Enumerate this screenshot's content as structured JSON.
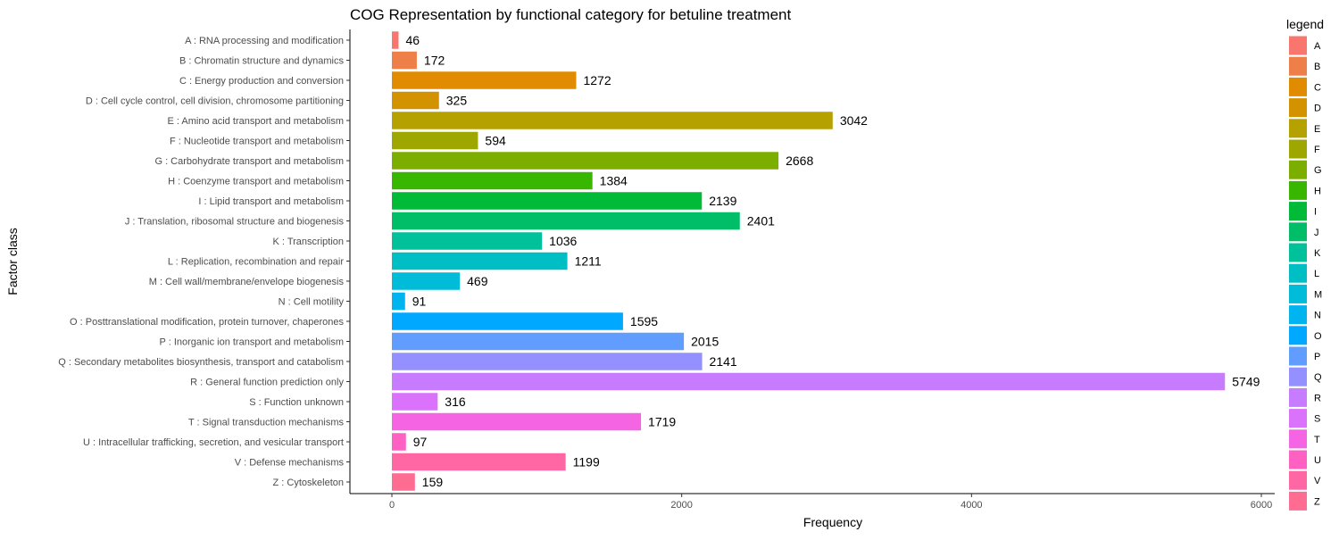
{
  "chart_data": {
    "type": "bar",
    "orientation": "horizontal",
    "title": "COG Representation by functional category for betuline treatment",
    "xlabel": "Frequency",
    "ylabel": "Factor class",
    "xlim": [
      0,
      6000
    ],
    "xticks": [
      0,
      2000,
      4000,
      6000
    ],
    "grid": false,
    "legend_title": "legend",
    "legend_position": "right",
    "categories": [
      "A : RNA processing and modification",
      "B : Chromatin structure and dynamics",
      "C : Energy production and conversion",
      "D : Cell cycle control, cell division, chromosome partitioning",
      "E : Amino acid transport and metabolism",
      "F : Nucleotide transport and metabolism",
      "G : Carbohydrate transport and metabolism",
      "H : Coenzyme transport and metabolism",
      "I : Lipid transport and metabolism",
      "J : Translation, ribosomal structure and biogenesis",
      "K : Transcription",
      "L : Replication, recombination and repair",
      "M : Cell wall/membrane/envelope biogenesis",
      "N : Cell motility",
      "O : Posttranslational modification, protein turnover, chaperones",
      "P : Inorganic ion transport and metabolism",
      "Q : Secondary metabolites biosynthesis, transport and catabolism",
      "R : General function prediction only",
      "S : Function unknown",
      "T : Signal transduction mechanisms",
      "U : Intracellular trafficking, secretion, and vesicular transport",
      "V : Defense mechanisms",
      "Z : Cytoskeleton"
    ],
    "legend_labels": [
      "A",
      "B",
      "C",
      "D",
      "E",
      "F",
      "G",
      "H",
      "I",
      "J",
      "K",
      "L",
      "M",
      "N",
      "O",
      "P",
      "Q",
      "R",
      "S",
      "T",
      "U",
      "V",
      "Z"
    ],
    "values": [
      46,
      172,
      1272,
      325,
      3042,
      594,
      2668,
      1384,
      2139,
      2401,
      1036,
      1211,
      469,
      91,
      1595,
      2015,
      2141,
      5749,
      316,
      1719,
      97,
      1199,
      159
    ],
    "colors": [
      "#F8766D",
      "#EF7F49",
      "#E08B00",
      "#D39200",
      "#B5A100",
      "#9DA700",
      "#7CAE00",
      "#39B600",
      "#00BA38",
      "#00BE67",
      "#00C19A",
      "#00BFC4",
      "#00BCD8",
      "#00B4F0",
      "#00A9FF",
      "#619CFF",
      "#9590FF",
      "#C77CFF",
      "#DB72FB",
      "#F564E3",
      "#FF61C3",
      "#FF67A4",
      "#FF6C91"
    ]
  }
}
